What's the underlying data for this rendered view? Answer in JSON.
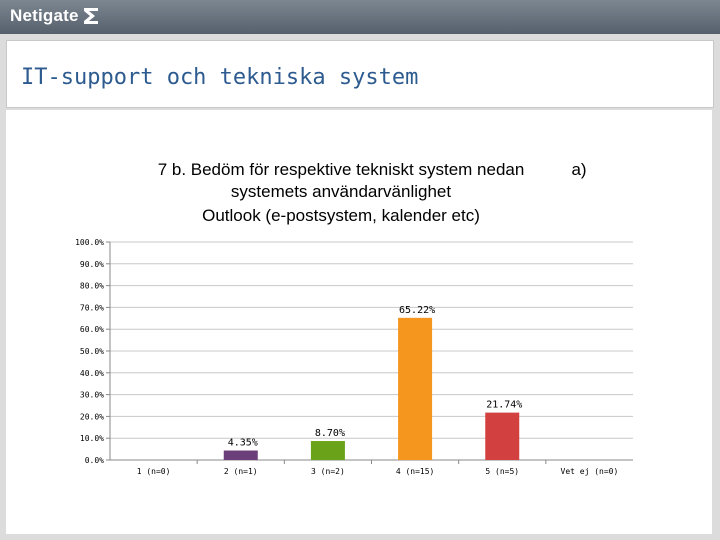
{
  "header": {
    "logo_text": "Netigate"
  },
  "slide": {
    "title": "IT-support och tekniska system"
  },
  "colors": {
    "header_bg": "#606b77",
    "title_text": "#2d5b8f",
    "bar_1": "#6b3f7a",
    "bar_2": "#6aa319",
    "bar_3": "#f5961f",
    "bar_4": "#d24040",
    "grid": "#c8c8c8"
  },
  "chart_data": {
    "type": "bar",
    "title_lines": [
      "7 b. Bedöm för respektive tekniskt system nedan",
      "systemets användarvänlighet",
      "Outlook (e-postsystem, kalender etc)"
    ],
    "title_suffix": "a)",
    "categories": [
      "1 (n=0)",
      "2 (n=1)",
      "3 (n=2)",
      "4 (n=15)",
      "5 (n=5)",
      "Vet ej (n=0)"
    ],
    "values": [
      0,
      4.35,
      8.7,
      65.22,
      21.74,
      0
    ],
    "data_labels": [
      "",
      "4.35%",
      "8.70%",
      "65.22%",
      "21.74%",
      ""
    ],
    "bar_colors": [
      "#6b3f7a",
      "#6b3f7a",
      "#6aa319",
      "#f5961f",
      "#d24040",
      "#d24040"
    ],
    "y_ticks": [
      "0.0%",
      "10.0%",
      "20.0%",
      "30.0%",
      "40.0%",
      "50.0%",
      "60.0%",
      "70.0%",
      "80.0%",
      "90.0%",
      "100.0%"
    ],
    "ylim": [
      0,
      100
    ],
    "grid": true,
    "legend": "none"
  }
}
